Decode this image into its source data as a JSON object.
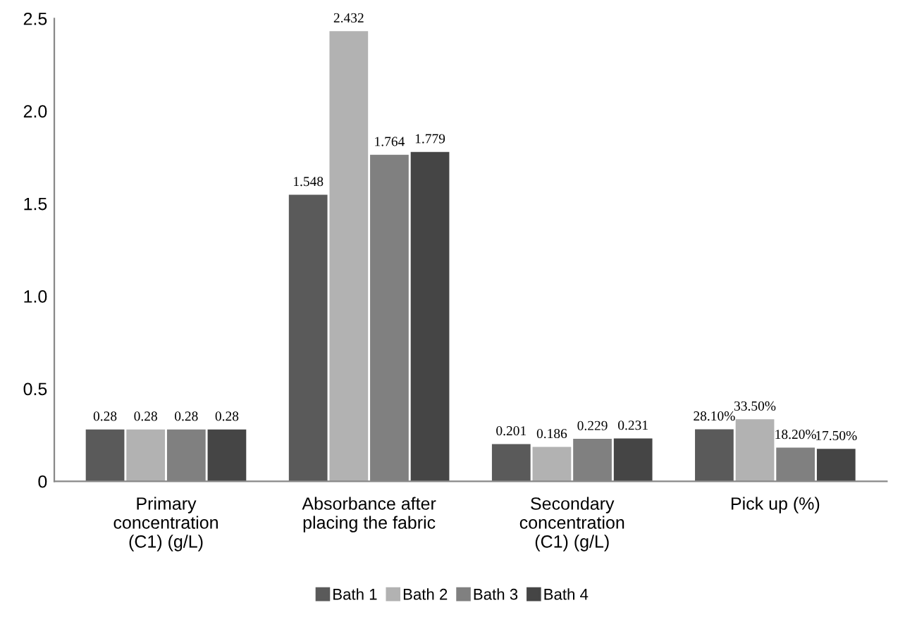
{
  "chart_data": {
    "type": "bar",
    "categories": [
      "Primary\nconcentration\n(C1) (g/L)",
      "Absorbance after\nplacing the fabric",
      "Secondary\nconcentration\n(C1) (g/L)",
      "Pick up (%)"
    ],
    "series": [
      {
        "name": "Bath 1",
        "color": "#5a5a5a",
        "values": [
          0.28,
          1.548,
          0.201,
          0.281
        ],
        "value_labels": [
          "0.28",
          "1.548",
          "0.201",
          "28.10%"
        ]
      },
      {
        "name": "Bath 2",
        "color": "#b2b2b2",
        "values": [
          0.28,
          2.432,
          0.186,
          0.335
        ],
        "value_labels": [
          "0.28",
          "2.432",
          "0.186",
          "33.50%"
        ]
      },
      {
        "name": "Bath 3",
        "color": "#808080",
        "values": [
          0.28,
          1.764,
          0.229,
          0.182
        ],
        "value_labels": [
          "0.28",
          "1.764",
          "0.229",
          "18.20%"
        ]
      },
      {
        "name": "Bath 4",
        "color": "#454545",
        "values": [
          0.28,
          1.779,
          0.231,
          0.175
        ],
        "value_labels": [
          "0.28",
          "1.779",
          "0.231",
          "17.50%"
        ]
      }
    ],
    "ylim": [
      0,
      2.5
    ],
    "yticks": [
      0,
      {
        "value": 0.5,
        "label": "0.5"
      },
      {
        "value": 1.0,
        "label": "1.0"
      },
      {
        "value": 1.5,
        "label": "1.5"
      },
      {
        "value": 2.0,
        "label": "2.0"
      },
      {
        "value": 2.5,
        "label": "2.5"
      }
    ],
    "grid": false,
    "legend": "bottom"
  }
}
